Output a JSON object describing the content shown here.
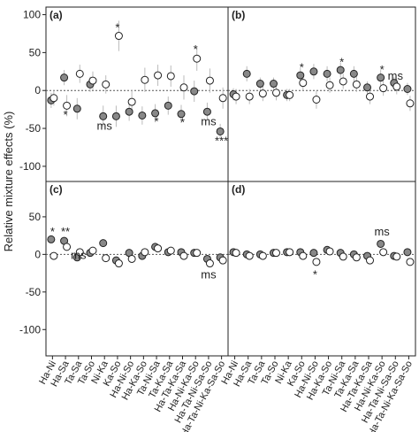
{
  "ylabel": "Relative mixture effects (%)",
  "chart_data": [
    {
      "type": "dot",
      "panel": "(a)",
      "ylim": [
        -120,
        110
      ],
      "yticks": [
        -100,
        -50,
        0,
        50,
        100
      ],
      "series": [
        {
          "color": "#888888",
          "values": [
            -13,
            17,
            -24,
            8,
            -34,
            -34,
            -28,
            -33,
            -30,
            -20,
            -31,
            -1,
            -28,
            -54
          ],
          "errors": [
            10,
            10,
            14,
            10,
            14,
            14,
            12,
            12,
            12,
            12,
            12,
            14,
            12,
            10
          ]
        },
        {
          "color": "#ffffff",
          "values": [
            -10,
            -20,
            22,
            13,
            8,
            72,
            -15,
            14,
            20,
            19,
            4,
            42,
            13,
            -10
          ],
          "errors": [
            10,
            14,
            12,
            12,
            12,
            20,
            16,
            16,
            14,
            14,
            16,
            16,
            16,
            14
          ]
        }
      ],
      "annotations": [
        {
          "label": "*",
          "x": 1,
          "value": -31
        },
        {
          "label": "*",
          "x": 5,
          "value": 84
        },
        {
          "label": "ms",
          "x": 4,
          "value": -46
        },
        {
          "label": "*",
          "x": 8,
          "value": -40
        },
        {
          "label": "*",
          "x": 10,
          "value": -41
        },
        {
          "label": "*",
          "x": 11,
          "value": 55
        },
        {
          "label": "ms",
          "x": 12,
          "value": -40
        },
        {
          "label": "***",
          "x": 13,
          "value": -66
        }
      ]
    },
    {
      "type": "dot",
      "panel": "(b)",
      "ylim": [
        -120,
        110
      ],
      "series": [
        {
          "color": "#888888",
          "values": [
            -5,
            22,
            9,
            9,
            -6,
            20,
            25,
            22,
            27,
            22,
            4,
            17,
            10,
            2
          ],
          "errors": [
            8,
            10,
            8,
            8,
            8,
            10,
            10,
            10,
            10,
            10,
            8,
            10,
            8,
            8
          ]
        },
        {
          "color": "#ffffff",
          "values": [
            -8,
            -8,
            -4,
            -3,
            -6,
            10,
            -12,
            7,
            12,
            8,
            -8,
            3,
            5,
            -17
          ],
          "errors": [
            10,
            10,
            10,
            10,
            8,
            10,
            12,
            10,
            10,
            10,
            10,
            10,
            10,
            10
          ]
        }
      ],
      "annotations": [
        {
          "label": "*",
          "x": 5,
          "value": 31
        },
        {
          "label": "*",
          "x": 8,
          "value": 38
        },
        {
          "label": "*",
          "x": 11,
          "value": 28
        },
        {
          "label": "ms",
          "x": 12,
          "value": 20
        }
      ]
    },
    {
      "type": "dot",
      "panel": "(c)",
      "ylim": [
        -135,
        97
      ],
      "yticks": [
        -100,
        -50,
        0,
        50
      ],
      "categories": [
        "Ha-Ni",
        "Ha-Sa",
        "Ta-Sa",
        "Ta-So",
        "Ni-Ka",
        "Ka-So",
        "Ha-Ni-So",
        "Ha-Ka-So",
        "Ta-Ni-Sa",
        "Ta-Ka-Sa",
        "Ha-Ta-Ka-Sa",
        "Ha-Ni-Ka-So",
        "Ha-Ta-Ni-Sa-So",
        "Ha-Ta-Ni-Ka-Sa-So"
      ],
      "series": [
        {
          "color": "#888888",
          "values": [
            20,
            18,
            -4,
            2,
            15,
            -8,
            2,
            -2,
            10,
            3,
            3,
            2,
            -6,
            -4
          ],
          "errors": [
            5,
            5,
            5,
            5,
            5,
            5,
            5,
            5,
            5,
            5,
            5,
            5,
            5,
            5
          ]
        },
        {
          "color": "#ffffff",
          "values": [
            -2,
            10,
            3,
            5,
            -5,
            -12,
            -6,
            3,
            8,
            5,
            -2,
            2,
            -12,
            -8
          ],
          "errors": [
            5,
            5,
            5,
            5,
            5,
            5,
            5,
            5,
            5,
            5,
            5,
            5,
            5,
            5
          ]
        }
      ],
      "annotations": [
        {
          "label": "*",
          "x": 0,
          "value": 31
        },
        {
          "label": "**",
          "x": 1,
          "value": 31
        },
        {
          "label": "ms",
          "x": 2,
          "value": 0
        },
        {
          "label": "ms",
          "x": 12,
          "value": -26
        }
      ]
    },
    {
      "type": "dot",
      "panel": "(d)",
      "ylim": [
        -135,
        97
      ],
      "categories": [
        "Ha-Ni",
        "Ha-Sa",
        "Ta-Sa",
        "Ta-So",
        "Ni-Ka",
        "Ka-So",
        "Ha-Ni-So",
        "Ha-Ka-So",
        "Ta-Ni-Sa",
        "Ta-Ka-Sa",
        "Ha-Ta-Ka-Sa",
        "Ha-Ni-Ka-So",
        "Ha-Ta-Ni-Sa-So",
        "Ha-Ta-Ni-Ka-Sa-So"
      ],
      "series": [
        {
          "color": "#888888",
          "values": [
            3,
            0,
            0,
            2,
            3,
            3,
            2,
            6,
            2,
            0,
            -2,
            14,
            -2,
            3
          ],
          "errors": [
            4,
            4,
            4,
            4,
            4,
            4,
            4,
            4,
            4,
            4,
            4,
            5,
            4,
            4
          ]
        },
        {
          "color": "#ffffff",
          "values": [
            2,
            -2,
            -2,
            2,
            3,
            -2,
            -10,
            4,
            -3,
            -4,
            -8,
            3,
            -3,
            -10
          ],
          "errors": [
            4,
            4,
            4,
            4,
            4,
            4,
            5,
            4,
            4,
            4,
            4,
            4,
            4,
            4
          ]
        }
      ],
      "annotations": [
        {
          "label": "*",
          "x": 6,
          "value": -26
        },
        {
          "label": "ms",
          "x": 11,
          "value": 31
        }
      ]
    }
  ]
}
